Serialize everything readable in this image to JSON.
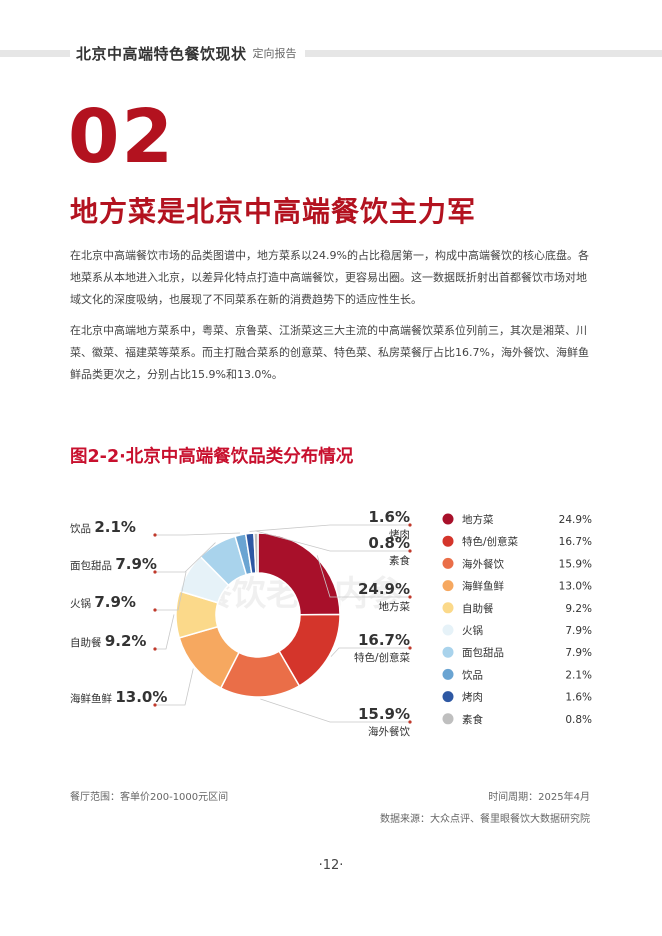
{
  "header": {
    "title": "北京中高端特色餐饮现状",
    "subtitle": "定向报告"
  },
  "section": {
    "number": "02",
    "title": "地方菜是北京中高端餐饮主力军",
    "paragraphs": [
      "在北京中高端餐饮市场的品类图谱中，地方菜系以24.9%的占比稳居第一，构成中高端餐饮的核心底盘。各地菜系从本地进入北京，以差异化特点打造中高端餐饮，更容易出圈。这一数据既折射出首都餐饮市场对地域文化的深度吸纳，也展现了不同菜系在新的消费趋势下的适应性生长。",
      "在北京中高端地方菜系中，粤菜、京鲁菜、江浙菜这三大主流的中高端餐饮菜系位列前三，其次是湘菜、川菜、徽菜、福建菜等菜系。而主打融合菜系的创意菜、特色菜、私房菜餐厅占比16.7%，海外餐饮、海鲜鱼鲜品类更次之，分别占比15.9%和13.0%。"
    ]
  },
  "figure": {
    "title": "图2-2·北京中高端餐饮品类分布情况"
  },
  "chart_data": {
    "type": "pie",
    "donut": true,
    "title": "图2-2·北京中高端餐饮品类分布情况",
    "legend_position": "right",
    "slices": [
      {
        "name": "地方菜",
        "value": 24.9,
        "label": "24.9%",
        "color": "#a8102a"
      },
      {
        "name": "特色/创意菜",
        "value": 16.7,
        "label": "16.7%",
        "color": "#d4352b"
      },
      {
        "name": "海外餐饮",
        "value": 15.9,
        "label": "15.9%",
        "color": "#ea6e48"
      },
      {
        "name": "海鲜鱼鲜",
        "value": 13.0,
        "label": "13.0%",
        "color": "#f6a860"
      },
      {
        "name": "自助餐",
        "value": 9.2,
        "label": "9.2%",
        "color": "#fbd98a"
      },
      {
        "name": "火锅",
        "value": 7.9,
        "label": "7.9%",
        "color": "#e6f2f8"
      },
      {
        "name": "面包甜品",
        "value": 7.9,
        "label": "7.9%",
        "color": "#a9d3ec"
      },
      {
        "name": "饮品",
        "value": 2.1,
        "label": "2.1%",
        "color": "#6aa4d2"
      },
      {
        "name": "烤肉",
        "value": 1.6,
        "label": "1.6%",
        "color": "#2e58a3"
      },
      {
        "name": "素食",
        "value": 0.8,
        "label": "0.8%",
        "color": "#bfbfbf"
      }
    ]
  },
  "watermark": {
    "text": "餐饮老板内参"
  },
  "footer": {
    "scope": "餐厅范围：客单价200-1000元区间",
    "period": "时间周期：2025年4月",
    "source": "数据来源：大众点评、餐里眼餐饮大数据研究院",
    "page": "·12·"
  }
}
